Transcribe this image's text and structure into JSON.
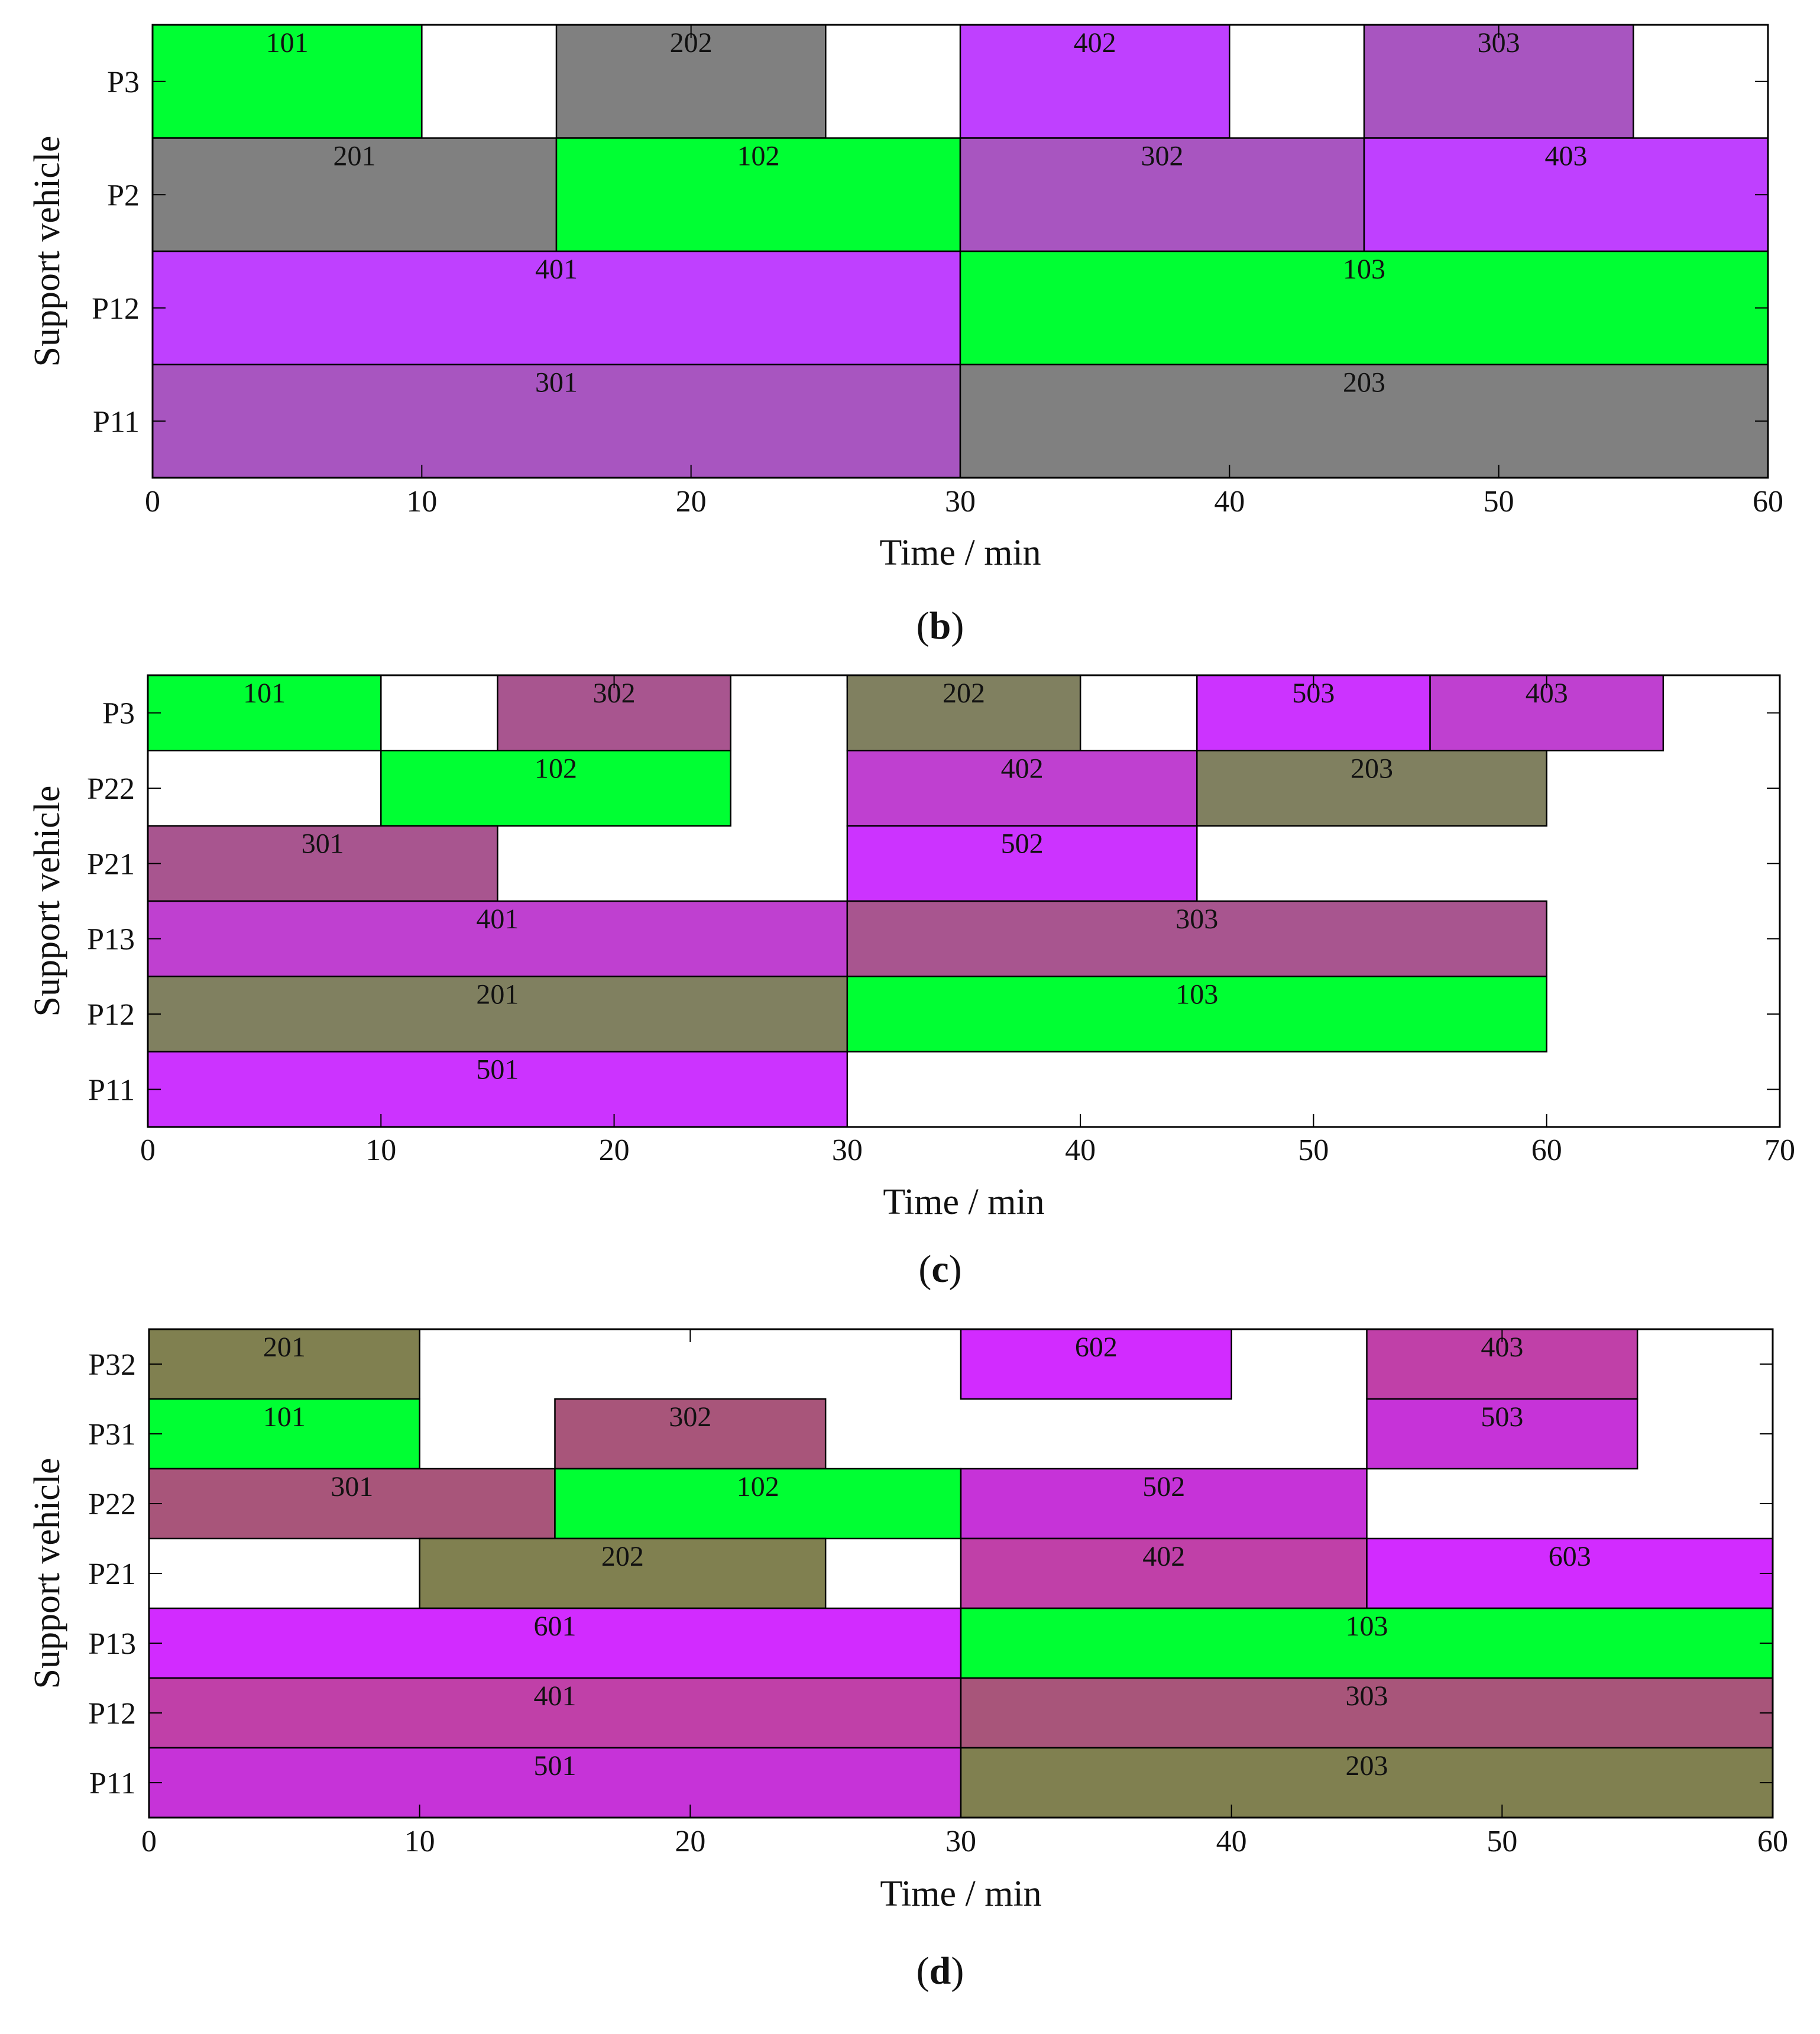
{
  "chart_data": [
    {
      "type": "gantt",
      "panel_label": "(b)",
      "ylabel": "Support vehicle",
      "xlabel": "Time / min",
      "xlim": [
        0,
        60
      ],
      "xticks": [
        0,
        10,
        20,
        30,
        40,
        50,
        60
      ],
      "rows": [
        "P3",
        "P2",
        "P12",
        "P11"
      ],
      "tasks": [
        {
          "row": "P3",
          "label": "101",
          "start": 0,
          "end": 10,
          "color": "#00ff33"
        },
        {
          "row": "P3",
          "label": "202",
          "start": 15,
          "end": 25,
          "color": "#808080"
        },
        {
          "row": "P3",
          "label": "402",
          "start": 30,
          "end": 40,
          "color": "#bf40ff"
        },
        {
          "row": "P3",
          "label": "303",
          "start": 45,
          "end": 55,
          "color": "#a855c0"
        },
        {
          "row": "P2",
          "label": "201",
          "start": 0,
          "end": 15,
          "color": "#808080"
        },
        {
          "row": "P2",
          "label": "102",
          "start": 15,
          "end": 30,
          "color": "#00ff33"
        },
        {
          "row": "P2",
          "label": "302",
          "start": 30,
          "end": 45,
          "color": "#a855c0"
        },
        {
          "row": "P2",
          "label": "403",
          "start": 45,
          "end": 60,
          "color": "#bf40ff"
        },
        {
          "row": "P12",
          "label": "401",
          "start": 0,
          "end": 30,
          "color": "#bf40ff"
        },
        {
          "row": "P12",
          "label": "103",
          "start": 30,
          "end": 60,
          "color": "#00ff33"
        },
        {
          "row": "P11",
          "label": "301",
          "start": 0,
          "end": 30,
          "color": "#a855c0"
        },
        {
          "row": "P11",
          "label": "203",
          "start": 30,
          "end": 60,
          "color": "#808080"
        }
      ]
    },
    {
      "type": "gantt",
      "panel_label": "(c)",
      "ylabel": "Support vehicle",
      "xlabel": "Time / min",
      "xlim": [
        0,
        70
      ],
      "xticks": [
        0,
        10,
        20,
        30,
        40,
        50,
        60,
        70
      ],
      "rows": [
        "P3",
        "P22",
        "P21",
        "P13",
        "P12",
        "P11"
      ],
      "tasks": [
        {
          "row": "P3",
          "label": "101",
          "start": 0,
          "end": 10,
          "color": "#00ff33"
        },
        {
          "row": "P3",
          "label": "302",
          "start": 15,
          "end": 25,
          "color": "#a8558f"
        },
        {
          "row": "P3",
          "label": "202",
          "start": 30,
          "end": 40,
          "color": "#808060"
        },
        {
          "row": "P3",
          "label": "503",
          "start": 45,
          "end": 55,
          "color": "#cc33ff"
        },
        {
          "row": "P3",
          "label": "403",
          "start": 55,
          "end": 65,
          "color": "#bf40d0"
        },
        {
          "row": "P22",
          "label": "102",
          "start": 10,
          "end": 25,
          "color": "#00ff33"
        },
        {
          "row": "P22",
          "label": "402",
          "start": 30,
          "end": 45,
          "color": "#bf40d0"
        },
        {
          "row": "P22",
          "label": "203",
          "start": 45,
          "end": 60,
          "color": "#808060"
        },
        {
          "row": "P21",
          "label": "301",
          "start": 0,
          "end": 15,
          "color": "#a8558f"
        },
        {
          "row": "P21",
          "label": "502",
          "start": 30,
          "end": 45,
          "color": "#cc33ff"
        },
        {
          "row": "P13",
          "label": "401",
          "start": 0,
          "end": 30,
          "color": "#bf40d0"
        },
        {
          "row": "P13",
          "label": "303",
          "start": 30,
          "end": 60,
          "color": "#a8558f"
        },
        {
          "row": "P12",
          "label": "201",
          "start": 0,
          "end": 30,
          "color": "#808060"
        },
        {
          "row": "P12",
          "label": "103",
          "start": 30,
          "end": 60,
          "color": "#00ff33"
        },
        {
          "row": "P11",
          "label": "501",
          "start": 0,
          "end": 30,
          "color": "#cc33ff"
        }
      ]
    },
    {
      "type": "gantt",
      "panel_label": "(d)",
      "ylabel": "Support vehicle",
      "xlabel": "Time / min",
      "xlim": [
        0,
        60
      ],
      "xticks": [
        0,
        10,
        20,
        30,
        40,
        50,
        60
      ],
      "rows": [
        "P32",
        "P31",
        "P22",
        "P21",
        "P13",
        "P12",
        "P11"
      ],
      "tasks": [
        {
          "row": "P32",
          "label": "201",
          "start": 0,
          "end": 10,
          "color": "#808050"
        },
        {
          "row": "P32",
          "label": "602",
          "start": 30,
          "end": 40,
          "color": "#d22bff"
        },
        {
          "row": "P32",
          "label": "403",
          "start": 45,
          "end": 55,
          "color": "#c040a8"
        },
        {
          "row": "P31",
          "label": "101",
          "start": 0,
          "end": 10,
          "color": "#00ff33"
        },
        {
          "row": "P31",
          "label": "302",
          "start": 15,
          "end": 25,
          "color": "#a8557a"
        },
        {
          "row": "P31",
          "label": "503",
          "start": 45,
          "end": 55,
          "color": "#c633d8"
        },
        {
          "row": "P22",
          "label": "301",
          "start": 0,
          "end": 15,
          "color": "#a8557a"
        },
        {
          "row": "P22",
          "label": "102",
          "start": 15,
          "end": 30,
          "color": "#00ff33"
        },
        {
          "row": "P22",
          "label": "502",
          "start": 30,
          "end": 45,
          "color": "#c633d8"
        },
        {
          "row": "P21",
          "label": "202",
          "start": 10,
          "end": 25,
          "color": "#808050"
        },
        {
          "row": "P21",
          "label": "402",
          "start": 30,
          "end": 45,
          "color": "#c040a8"
        },
        {
          "row": "P21",
          "label": "603",
          "start": 45,
          "end": 60,
          "color": "#d22bff"
        },
        {
          "row": "P13",
          "label": "601",
          "start": 0,
          "end": 30,
          "color": "#d22bff"
        },
        {
          "row": "P13",
          "label": "103",
          "start": 30,
          "end": 60,
          "color": "#00ff33"
        },
        {
          "row": "P12",
          "label": "401",
          "start": 0,
          "end": 30,
          "color": "#c040a8"
        },
        {
          "row": "P12",
          "label": "303",
          "start": 30,
          "end": 60,
          "color": "#a8557a"
        },
        {
          "row": "P11",
          "label": "501",
          "start": 0,
          "end": 30,
          "color": "#c633d8"
        },
        {
          "row": "P11",
          "label": "203",
          "start": 30,
          "end": 60,
          "color": "#808050"
        }
      ]
    }
  ]
}
